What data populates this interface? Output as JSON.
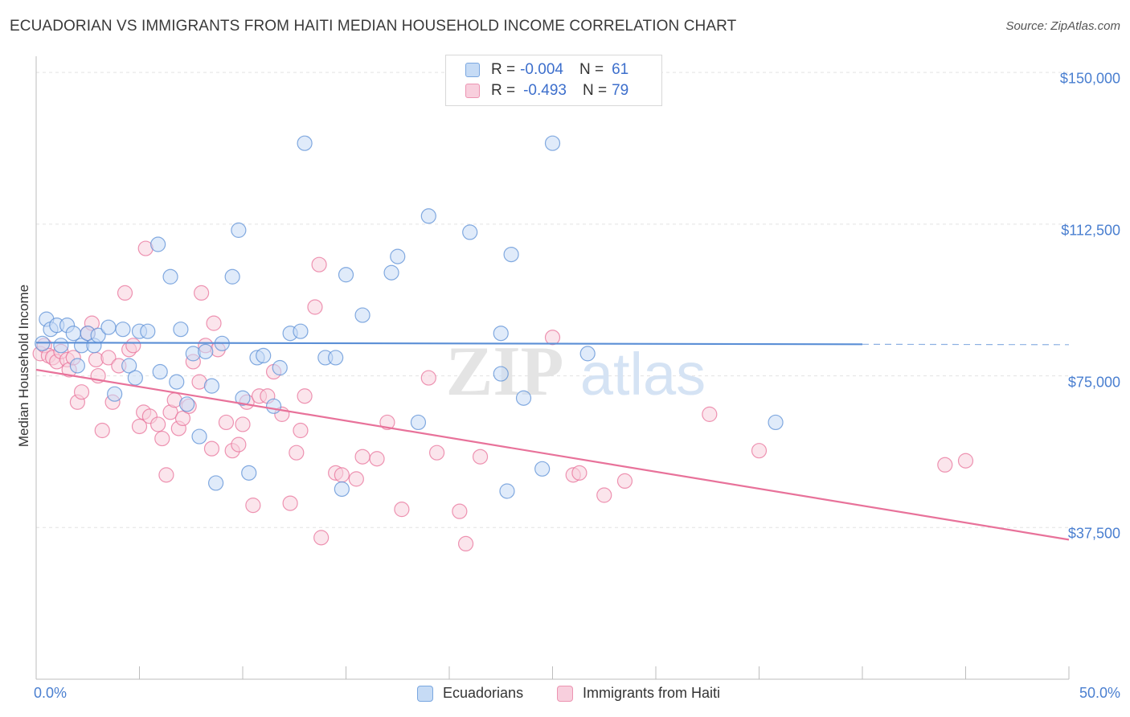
{
  "title": "ECUADORIAN VS IMMIGRANTS FROM HAITI MEDIAN HOUSEHOLD INCOME CORRELATION CHART",
  "source": "Source: ZipAtlas.com",
  "watermark": {
    "zip": "ZIP",
    "atlas": "atlas"
  },
  "legend_top": {
    "rows": [
      {
        "r_label": "R = ",
        "r_value": "-0.004",
        "n_label": "N = ",
        "n_value": "61",
        "color": "#7aa7e0",
        "fill": "#c6dbf5"
      },
      {
        "r_label": "R = ",
        "r_value": "-0.493",
        "n_label": "N = ",
        "n_value": "79",
        "color": "#ec94b2",
        "fill": "#f8cfdd"
      }
    ]
  },
  "legend_bottom": [
    "Ecuadorians",
    "Immigrants from Haiti"
  ],
  "chart_data": {
    "type": "scatter",
    "title": "ECUADORIAN VS IMMIGRANTS FROM HAITI MEDIAN HOUSEHOLD INCOME CORRELATION CHART",
    "xlabel": "",
    "ylabel": "Median Household Income",
    "x_tick_labels": [
      "0.0%",
      "50.0%"
    ],
    "y_tick_labels": [
      "$37,500",
      "$75,000",
      "$112,500",
      "$150,000"
    ],
    "y_ticks": [
      37500,
      75000,
      112500,
      150000
    ],
    "xlim": [
      0,
      50
    ],
    "ylim": [
      0,
      154000
    ],
    "grid": true,
    "legend_position": "top-center",
    "series": [
      {
        "name": "Ecuadorians",
        "color": "#5b8fd6",
        "fill": "#c6dbf5",
        "trend": {
          "x": [
            0,
            40
          ],
          "y": [
            83200,
            82800
          ],
          "dashed_to_x": 50
        },
        "points": [
          [
            0.3,
            83000
          ],
          [
            0.5,
            89000
          ],
          [
            0.7,
            86500
          ],
          [
            1.0,
            87500
          ],
          [
            1.2,
            82500
          ],
          [
            1.5,
            87500
          ],
          [
            1.8,
            85500
          ],
          [
            2.0,
            77500
          ],
          [
            2.2,
            82500
          ],
          [
            2.5,
            85500
          ],
          [
            2.8,
            82500
          ],
          [
            3.0,
            85000
          ],
          [
            3.5,
            87000
          ],
          [
            3.8,
            70500
          ],
          [
            4.2,
            86500
          ],
          [
            4.5,
            77500
          ],
          [
            4.8,
            74500
          ],
          [
            5.0,
            86000
          ],
          [
            5.4,
            86000
          ],
          [
            5.9,
            107500
          ],
          [
            6.0,
            76000
          ],
          [
            6.5,
            99500
          ],
          [
            6.8,
            73500
          ],
          [
            7.0,
            86500
          ],
          [
            7.3,
            68000
          ],
          [
            7.6,
            80500
          ],
          [
            7.9,
            60000
          ],
          [
            8.2,
            81000
          ],
          [
            8.5,
            72500
          ],
          [
            8.7,
            48500
          ],
          [
            9.0,
            83000
          ],
          [
            9.5,
            99500
          ],
          [
            9.8,
            111000
          ],
          [
            10.0,
            69500
          ],
          [
            10.3,
            51000
          ],
          [
            10.7,
            79500
          ],
          [
            11.0,
            80000
          ],
          [
            11.5,
            67500
          ],
          [
            11.8,
            77000
          ],
          [
            12.3,
            85500
          ],
          [
            12.8,
            86000
          ],
          [
            13.0,
            132500
          ],
          [
            14.0,
            79500
          ],
          [
            14.5,
            79500
          ],
          [
            14.8,
            47000
          ],
          [
            15.0,
            100000
          ],
          [
            15.8,
            90000
          ],
          [
            17.2,
            100500
          ],
          [
            17.5,
            104500
          ],
          [
            19.0,
            114500
          ],
          [
            18.5,
            63500
          ],
          [
            21.0,
            110500
          ],
          [
            22.5,
            85500
          ],
          [
            22.5,
            75500
          ],
          [
            22.8,
            46500
          ],
          [
            23.0,
            105000
          ],
          [
            23.6,
            69500
          ],
          [
            24.5,
            52000
          ],
          [
            25.0,
            132500
          ],
          [
            26.7,
            80500
          ],
          [
            35.8,
            63500
          ]
        ]
      },
      {
        "name": "Immigrants from Haiti",
        "color": "#e8729a",
        "fill": "#f8cfdd",
        "trend": {
          "x": [
            0,
            50
          ],
          "y": [
            76500,
            34500
          ]
        },
        "points": [
          [
            0.2,
            80500
          ],
          [
            0.4,
            82500
          ],
          [
            0.6,
            80000
          ],
          [
            0.8,
            79500
          ],
          [
            1.0,
            78500
          ],
          [
            1.2,
            81000
          ],
          [
            1.5,
            79000
          ],
          [
            1.6,
            76500
          ],
          [
            1.8,
            79500
          ],
          [
            2.0,
            68500
          ],
          [
            2.2,
            71000
          ],
          [
            2.5,
            85500
          ],
          [
            2.7,
            88000
          ],
          [
            2.9,
            79000
          ],
          [
            3.0,
            75000
          ],
          [
            3.2,
            61500
          ],
          [
            3.5,
            79500
          ],
          [
            3.7,
            68500
          ],
          [
            4.0,
            77500
          ],
          [
            4.3,
            95500
          ],
          [
            4.5,
            81500
          ],
          [
            4.7,
            82500
          ],
          [
            5.0,
            62500
          ],
          [
            5.2,
            66000
          ],
          [
            5.3,
            106500
          ],
          [
            5.5,
            65000
          ],
          [
            5.9,
            63000
          ],
          [
            6.1,
            59500
          ],
          [
            6.3,
            50500
          ],
          [
            6.5,
            66000
          ],
          [
            6.7,
            69000
          ],
          [
            6.9,
            62000
          ],
          [
            7.1,
            64500
          ],
          [
            7.4,
            67500
          ],
          [
            7.6,
            78500
          ],
          [
            7.9,
            73500
          ],
          [
            8.0,
            95500
          ],
          [
            8.2,
            82500
          ],
          [
            8.5,
            57000
          ],
          [
            8.6,
            88000
          ],
          [
            8.8,
            81500
          ],
          [
            9.2,
            63500
          ],
          [
            9.5,
            56500
          ],
          [
            9.8,
            58000
          ],
          [
            10.0,
            63000
          ],
          [
            10.2,
            68500
          ],
          [
            10.5,
            43000
          ],
          [
            10.8,
            70000
          ],
          [
            11.2,
            70000
          ],
          [
            11.5,
            76000
          ],
          [
            11.9,
            65500
          ],
          [
            12.3,
            43500
          ],
          [
            12.6,
            56000
          ],
          [
            12.8,
            61500
          ],
          [
            13.0,
            70000
          ],
          [
            13.5,
            92000
          ],
          [
            13.7,
            102500
          ],
          [
            13.8,
            35000
          ],
          [
            14.5,
            51000
          ],
          [
            14.8,
            50500
          ],
          [
            15.5,
            49500
          ],
          [
            15.8,
            55000
          ],
          [
            16.5,
            54500
          ],
          [
            17.0,
            63500
          ],
          [
            17.7,
            42000
          ],
          [
            19.0,
            74500
          ],
          [
            19.4,
            56000
          ],
          [
            20.5,
            41500
          ],
          [
            20.8,
            33500
          ],
          [
            21.5,
            55000
          ],
          [
            25.0,
            84500
          ],
          [
            26.0,
            50500
          ],
          [
            26.3,
            51000
          ],
          [
            27.5,
            45500
          ],
          [
            28.5,
            49000
          ],
          [
            32.6,
            65500
          ],
          [
            35.0,
            56500
          ],
          [
            44.0,
            53000
          ],
          [
            45.0,
            54000
          ]
        ]
      }
    ]
  }
}
